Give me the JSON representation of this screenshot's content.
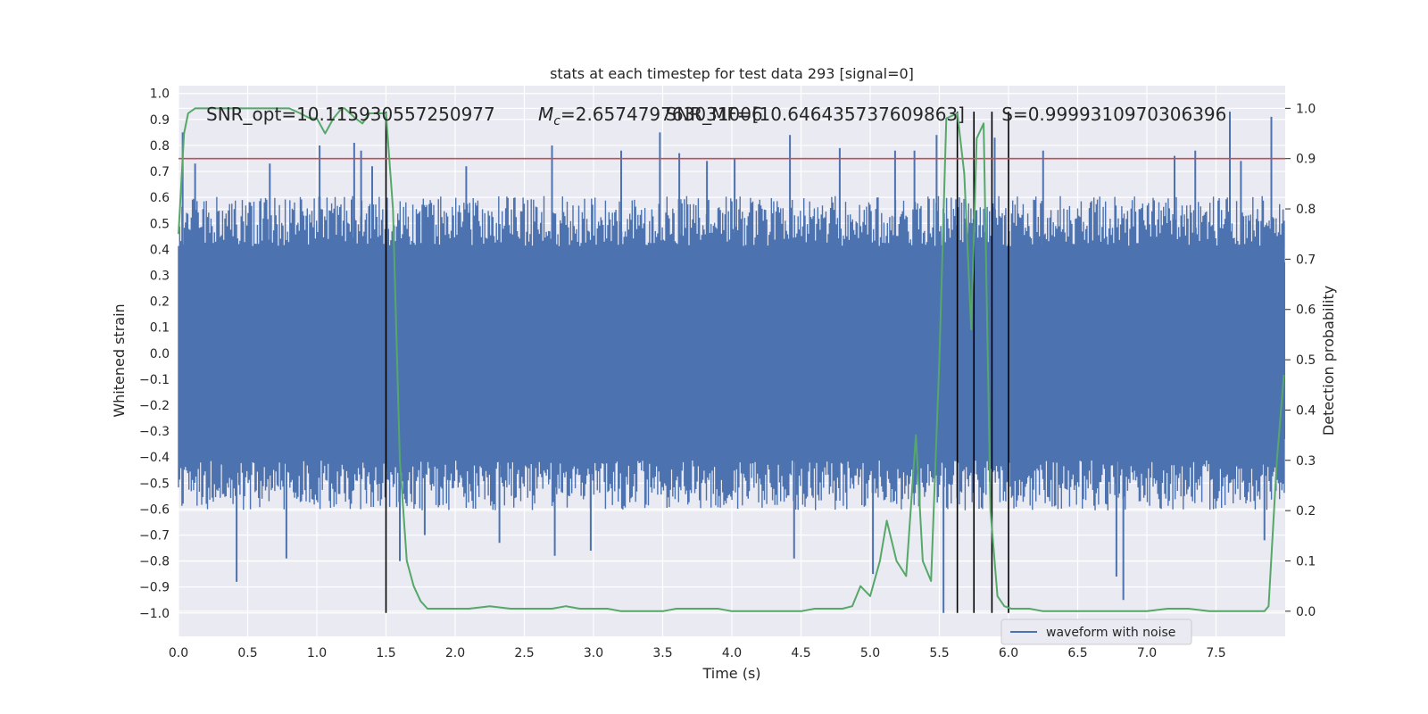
{
  "chart_data": {
    "type": "line",
    "title": "stats at each timestep for test data 293 [signal=0]",
    "xlabel": "Time (s)",
    "ylabel_left": "Whitened strain",
    "ylabel_right": "Detection probability",
    "xlim": [
      0.0,
      8.0
    ],
    "ylim_left": [
      -1.09,
      1.03
    ],
    "ylim_right": [
      -0.05,
      1.045
    ],
    "x_ticks": [
      "0.0",
      "0.5",
      "1.0",
      "1.5",
      "2.0",
      "2.5",
      "3.0",
      "3.5",
      "4.0",
      "4.5",
      "5.0",
      "5.5",
      "6.0",
      "6.5",
      "7.0",
      "7.5"
    ],
    "y_ticks_left": [
      "1.0",
      "0.9",
      "0.8",
      "0.7",
      "0.6",
      "0.5",
      "0.4",
      "0.3",
      "0.2",
      "0.1",
      "0.0",
      "−0.1",
      "−0.2",
      "−0.3",
      "−0.4",
      "−0.5",
      "−0.6",
      "−0.7",
      "−0.8",
      "−0.9",
      "−1.0"
    ],
    "y_ticks_right": [
      "1.0",
      "0.9",
      "0.8",
      "0.7",
      "0.6",
      "0.5",
      "0.4",
      "0.3",
      "0.2",
      "0.1",
      "0.0"
    ],
    "grid": true,
    "legend": {
      "placement": "lower-center",
      "entries": [
        {
          "label": "waveform with noise",
          "color": "#4c72b0"
        }
      ]
    },
    "annotations": [
      {
        "text": "SNR_opt=10.115930557250977",
        "x": 0.2,
        "y": 0.92
      },
      {
        "text": "M",
        "sub": "c",
        "suffix": "=2.657479763031006",
        "x": 2.6,
        "y": 0.92
      },
      {
        "text": "SNR_MF=[10.646435737609863]",
        "x": 3.52,
        "y": 0.92
      },
      {
        "text": "S=0.9999310970306396",
        "x": 5.95,
        "y": 0.92
      }
    ],
    "threshold_line": {
      "y_right": 0.9,
      "color": "#c44e52"
    },
    "vertical_lines": {
      "x": [
        1.5,
        5.63,
        5.75,
        5.88,
        6.0
      ],
      "y_range_left": [
        -1.0,
        0.93
      ],
      "color": "#000000"
    },
    "series": [
      {
        "name": "waveform with noise",
        "axis": "left",
        "color": "#4c72b0",
        "style": "noise-band",
        "core_band": [
          -0.33,
          0.35
        ],
        "typical_extent": [
          -0.55,
          0.55
        ],
        "spikes": [
          {
            "x": 0.03,
            "y": 0.85
          },
          {
            "x": 0.12,
            "y": 0.73
          },
          {
            "x": 0.42,
            "y": -0.88
          },
          {
            "x": 0.66,
            "y": 0.73
          },
          {
            "x": 0.78,
            "y": -0.79
          },
          {
            "x": 1.02,
            "y": 0.8
          },
          {
            "x": 1.27,
            "y": 0.81
          },
          {
            "x": 1.32,
            "y": 0.78
          },
          {
            "x": 1.4,
            "y": 0.72
          },
          {
            "x": 1.6,
            "y": -0.8
          },
          {
            "x": 1.78,
            "y": -0.7
          },
          {
            "x": 2.08,
            "y": 0.72
          },
          {
            "x": 2.32,
            "y": -0.73
          },
          {
            "x": 2.7,
            "y": 0.8
          },
          {
            "x": 2.72,
            "y": -0.78
          },
          {
            "x": 2.98,
            "y": -0.76
          },
          {
            "x": 3.2,
            "y": 0.78
          },
          {
            "x": 3.48,
            "y": 0.85
          },
          {
            "x": 3.62,
            "y": 0.77
          },
          {
            "x": 3.82,
            "y": 0.74
          },
          {
            "x": 4.02,
            "y": 0.75
          },
          {
            "x": 4.42,
            "y": 0.84
          },
          {
            "x": 4.45,
            "y": -0.79
          },
          {
            "x": 4.78,
            "y": 0.79
          },
          {
            "x": 5.02,
            "y": -0.85
          },
          {
            "x": 5.18,
            "y": 0.78
          },
          {
            "x": 5.32,
            "y": 0.78
          },
          {
            "x": 5.53,
            "y": -1.0
          },
          {
            "x": 5.48,
            "y": 0.84
          },
          {
            "x": 5.9,
            "y": 0.83
          },
          {
            "x": 6.25,
            "y": 0.78
          },
          {
            "x": 6.78,
            "y": -0.86
          },
          {
            "x": 6.83,
            "y": -0.95
          },
          {
            "x": 7.2,
            "y": 0.76
          },
          {
            "x": 7.35,
            "y": 0.78
          },
          {
            "x": 7.6,
            "y": 0.93
          },
          {
            "x": 7.68,
            "y": 0.74
          },
          {
            "x": 7.85,
            "y": -0.72
          },
          {
            "x": 7.9,
            "y": 0.91
          }
        ]
      },
      {
        "name": "Detection probability",
        "axis": "right",
        "color": "#55a868",
        "x": [
          0.0,
          0.04,
          0.07,
          0.12,
          0.2,
          0.3,
          0.4,
          0.5,
          0.6,
          0.7,
          0.8,
          0.88,
          0.95,
          1.0,
          1.06,
          1.12,
          1.18,
          1.2,
          1.28,
          1.33,
          1.38,
          1.45,
          1.5,
          1.55,
          1.6,
          1.65,
          1.7,
          1.75,
          1.8,
          1.9,
          2.0,
          2.1,
          2.25,
          2.4,
          2.5,
          2.6,
          2.7,
          2.8,
          2.9,
          3.0,
          3.1,
          3.2,
          3.3,
          3.4,
          3.5,
          3.6,
          3.7,
          3.8,
          3.9,
          4.0,
          4.1,
          4.2,
          4.3,
          4.4,
          4.5,
          4.6,
          4.7,
          4.8,
          4.87,
          4.93,
          5.0,
          5.07,
          5.12,
          5.19,
          5.26,
          5.33,
          5.38,
          5.44,
          5.5,
          5.55,
          5.63,
          5.68,
          5.73,
          5.77,
          5.82,
          5.87,
          5.92,
          5.97,
          6.02,
          6.08,
          6.15,
          6.25,
          6.4,
          6.55,
          6.7,
          6.85,
          7.0,
          7.15,
          7.3,
          7.45,
          7.6,
          7.75,
          7.85,
          7.88,
          7.94,
          7.99
        ],
        "y": [
          0.75,
          0.95,
          0.99,
          1.0,
          1.0,
          1.0,
          1.0,
          1.0,
          1.0,
          1.0,
          1.0,
          0.99,
          0.98,
          0.98,
          0.95,
          0.98,
          1.0,
          1.0,
          0.98,
          0.97,
          0.99,
          0.99,
          0.99,
          0.8,
          0.3,
          0.1,
          0.05,
          0.02,
          0.005,
          0.005,
          0.005,
          0.005,
          0.01,
          0.005,
          0.005,
          0.005,
          0.005,
          0.01,
          0.005,
          0.005,
          0.005,
          0.0,
          0.0,
          0.0,
          0.0,
          0.005,
          0.005,
          0.005,
          0.005,
          0.0,
          0.0,
          0.0,
          0.0,
          0.0,
          0.0,
          0.005,
          0.005,
          0.005,
          0.01,
          0.05,
          0.03,
          0.1,
          0.18,
          0.1,
          0.07,
          0.35,
          0.1,
          0.06,
          0.5,
          0.98,
          0.99,
          0.87,
          0.56,
          0.94,
          0.97,
          0.2,
          0.03,
          0.01,
          0.005,
          0.005,
          0.005,
          0.0,
          0.0,
          0.0,
          0.0,
          0.0,
          0.0,
          0.005,
          0.005,
          0.0,
          0.0,
          0.0,
          0.0,
          0.01,
          0.3,
          0.47
        ]
      }
    ]
  }
}
